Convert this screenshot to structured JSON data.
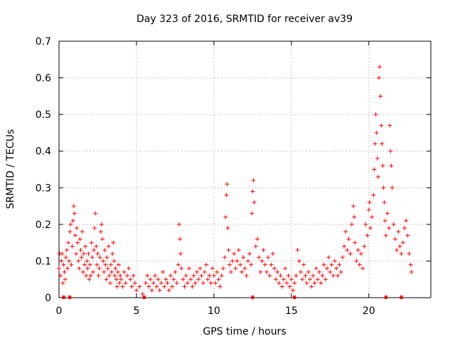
{
  "chart_data": {
    "type": "scatter",
    "title": "Day 323 of 2016, SRMTID for receiver av39",
    "xlabel": "GPS time / hours",
    "ylabel": "SRMTID / TECUs",
    "xlim": [
      0,
      24
    ],
    "ylim": [
      0,
      0.7
    ],
    "grid": true,
    "marker": "+",
    "color": "#ff0000",
    "x_ticks": [
      {
        "value": 0,
        "label": "0"
      },
      {
        "value": 5,
        "label": "5"
      },
      {
        "value": 10,
        "label": "10"
      },
      {
        "value": 15,
        "label": "15"
      },
      {
        "value": 20,
        "label": "20"
      }
    ],
    "y_ticks": [
      {
        "value": 0,
        "label": "0"
      },
      {
        "value": 0.1,
        "label": "0.1"
      },
      {
        "value": 0.2,
        "label": "0.2"
      },
      {
        "value": 0.3,
        "label": "0.3"
      },
      {
        "value": 0.4,
        "label": "0.4"
      },
      {
        "value": 0.5,
        "label": "0.5"
      },
      {
        "value": 0.6,
        "label": "0.6"
      },
      {
        "value": 0.7,
        "label": "0.7"
      }
    ],
    "series": [
      {
        "name": "SRMTID",
        "points": [
          [
            0.0,
            0.08
          ],
          [
            0.05,
            0.12
          ],
          [
            0.1,
            0.06
          ],
          [
            0.15,
            0.1
          ],
          [
            0.2,
            0.12
          ],
          [
            0.25,
            0.04
          ],
          [
            0.3,
            0.09
          ],
          [
            0.35,
            0.07
          ],
          [
            0.4,
            0.05
          ],
          [
            0.45,
            0.11
          ],
          [
            0.5,
            0.13
          ],
          [
            0.55,
            0.08
          ],
          [
            0.6,
            0.15
          ],
          [
            0.65,
            0.1
          ],
          [
            0.7,
            0.18
          ],
          [
            0.75,
            0.2
          ],
          [
            0.8,
            0.09
          ],
          [
            0.85,
            0.14
          ],
          [
            0.9,
            0.21
          ],
          [
            0.95,
            0.25
          ],
          [
            1.0,
            0.23
          ],
          [
            1.05,
            0.17
          ],
          [
            1.1,
            0.12
          ],
          [
            1.15,
            0.19
          ],
          [
            1.2,
            0.15
          ],
          [
            1.25,
            0.1
          ],
          [
            1.3,
            0.08
          ],
          [
            1.35,
            0.16
          ],
          [
            1.4,
            0.13
          ],
          [
            1.45,
            0.11
          ],
          [
            1.5,
            0.18
          ],
          [
            1.55,
            0.07
          ],
          [
            1.6,
            0.12
          ],
          [
            1.65,
            0.09
          ],
          [
            1.7,
            0.14
          ],
          [
            1.75,
            0.06
          ],
          [
            1.8,
            0.1
          ],
          [
            1.85,
            0.08
          ],
          [
            1.9,
            0.12
          ],
          [
            1.95,
            0.05
          ],
          [
            2.0,
            0.09
          ],
          [
            2.05,
            0.06
          ],
          [
            2.1,
            0.15
          ],
          [
            2.15,
            0.11
          ],
          [
            2.2,
            0.07
          ],
          [
            2.25,
            0.13
          ],
          [
            2.3,
            0.19
          ],
          [
            2.35,
            0.23
          ],
          [
            2.4,
            0.14
          ],
          [
            2.45,
            0.09
          ],
          [
            2.5,
            0.12
          ],
          [
            2.55,
            0.06
          ],
          [
            2.6,
            0.08
          ],
          [
            2.65,
            0.11
          ],
          [
            2.7,
            0.18
          ],
          [
            2.75,
            0.2
          ],
          [
            2.8,
            0.16
          ],
          [
            2.85,
            0.1
          ],
          [
            2.9,
            0.07
          ],
          [
            2.95,
            0.13
          ],
          [
            3.0,
            0.09
          ],
          [
            3.05,
            0.05
          ],
          [
            3.1,
            0.11
          ],
          [
            3.15,
            0.08
          ],
          [
            3.2,
            0.14
          ],
          [
            3.25,
            0.06
          ],
          [
            3.3,
            0.04
          ],
          [
            3.35,
            0.09
          ],
          [
            3.4,
            0.07
          ],
          [
            3.45,
            0.12
          ],
          [
            3.5,
            0.15
          ],
          [
            3.55,
            0.1
          ],
          [
            3.6,
            0.06
          ],
          [
            3.65,
            0.08
          ],
          [
            3.7,
            0.05
          ],
          [
            3.75,
            0.03
          ],
          [
            3.8,
            0.07
          ],
          [
            3.85,
            0.09
          ],
          [
            3.9,
            0.04
          ],
          [
            3.95,
            0.06
          ],
          [
            4.0,
            0.05
          ],
          [
            4.1,
            0.03
          ],
          [
            4.2,
            0.07
          ],
          [
            4.3,
            0.04
          ],
          [
            4.4,
            0.06
          ],
          [
            4.5,
            0.08
          ],
          [
            4.6,
            0.05
          ],
          [
            4.7,
            0.03
          ],
          [
            4.8,
            0.06
          ],
          [
            4.9,
            0.04
          ],
          [
            5.0,
            0.02
          ],
          [
            5.2,
            0.03
          ],
          [
            5.4,
            0.01
          ],
          [
            5.6,
            0.04
          ],
          [
            5.7,
            0.06
          ],
          [
            5.8,
            0.03
          ],
          [
            5.9,
            0.05
          ],
          [
            6.0,
            0.02
          ],
          [
            6.1,
            0.04
          ],
          [
            6.2,
            0.06
          ],
          [
            6.3,
            0.03
          ],
          [
            6.4,
            0.05
          ],
          [
            6.5,
            0.02
          ],
          [
            6.6,
            0.04
          ],
          [
            6.7,
            0.07
          ],
          [
            6.8,
            0.03
          ],
          [
            6.9,
            0.05
          ],
          [
            7.0,
            0.04
          ],
          [
            7.1,
            0.02
          ],
          [
            7.2,
            0.06
          ],
          [
            7.3,
            0.03
          ],
          [
            7.4,
            0.05
          ],
          [
            7.5,
            0.07
          ],
          [
            7.6,
            0.04
          ],
          [
            7.7,
            0.09
          ],
          [
            7.75,
            0.2
          ],
          [
            7.8,
            0.16
          ],
          [
            7.85,
            0.12
          ],
          [
            7.9,
            0.08
          ],
          [
            8.0,
            0.05
          ],
          [
            8.1,
            0.03
          ],
          [
            8.2,
            0.06
          ],
          [
            8.3,
            0.04
          ],
          [
            8.4,
            0.08
          ],
          [
            8.5,
            0.05
          ],
          [
            8.6,
            0.03
          ],
          [
            8.7,
            0.06
          ],
          [
            8.8,
            0.04
          ],
          [
            8.9,
            0.07
          ],
          [
            9.0,
            0.05
          ],
          [
            9.1,
            0.08
          ],
          [
            9.2,
            0.06
          ],
          [
            9.3,
            0.04
          ],
          [
            9.4,
            0.07
          ],
          [
            9.5,
            0.09
          ],
          [
            9.6,
            0.05
          ],
          [
            9.7,
            0.06
          ],
          [
            9.8,
            0.04
          ],
          [
            9.9,
            0.08
          ],
          [
            10.0,
            0.06
          ],
          [
            10.1,
            0.04
          ],
          [
            10.2,
            0.07
          ],
          [
            10.3,
            0.05
          ],
          [
            10.4,
            0.03
          ],
          [
            10.5,
            0.06
          ],
          [
            10.6,
            0.08
          ],
          [
            10.7,
            0.11
          ],
          [
            10.75,
            0.22
          ],
          [
            10.8,
            0.28
          ],
          [
            10.85,
            0.31
          ],
          [
            10.9,
            0.19
          ],
          [
            10.95,
            0.13
          ],
          [
            11.0,
            0.09
          ],
          [
            11.1,
            0.07
          ],
          [
            11.2,
            0.1
          ],
          [
            11.3,
            0.12
          ],
          [
            11.4,
            0.08
          ],
          [
            11.5,
            0.1
          ],
          [
            11.6,
            0.13
          ],
          [
            11.7,
            0.09
          ],
          [
            11.8,
            0.07
          ],
          [
            11.9,
            0.11
          ],
          [
            12.0,
            0.08
          ],
          [
            12.1,
            0.06
          ],
          [
            12.2,
            0.1
          ],
          [
            12.3,
            0.12
          ],
          [
            12.4,
            0.09
          ],
          [
            12.45,
            0.23
          ],
          [
            12.5,
            0.29
          ],
          [
            12.55,
            0.32
          ],
          [
            12.6,
            0.26
          ],
          [
            12.7,
            0.14
          ],
          [
            12.8,
            0.16
          ],
          [
            12.9,
            0.11
          ],
          [
            13.0,
            0.07
          ],
          [
            13.1,
            0.1
          ],
          [
            13.2,
            0.13
          ],
          [
            13.3,
            0.09
          ],
          [
            13.4,
            0.07
          ],
          [
            13.5,
            0.11
          ],
          [
            13.6,
            0.06
          ],
          [
            13.7,
            0.09
          ],
          [
            13.8,
            0.12
          ],
          [
            13.9,
            0.08
          ],
          [
            14.0,
            0.05
          ],
          [
            14.1,
            0.07
          ],
          [
            14.2,
            0.04
          ],
          [
            14.3,
            0.06
          ],
          [
            14.4,
            0.03
          ],
          [
            14.5,
            0.05
          ],
          [
            14.6,
            0.08
          ],
          [
            14.7,
            0.04
          ],
          [
            14.8,
            0.06
          ],
          [
            14.9,
            0.03
          ],
          [
            15.0,
            0.05
          ],
          [
            15.1,
            0.02
          ],
          [
            15.2,
            0.04
          ],
          [
            15.3,
            0.06
          ],
          [
            15.4,
            0.13
          ],
          [
            15.5,
            0.1
          ],
          [
            15.6,
            0.07
          ],
          [
            15.7,
            0.05
          ],
          [
            15.8,
            0.09
          ],
          [
            15.9,
            0.06
          ],
          [
            16.0,
            0.04
          ],
          [
            16.1,
            0.07
          ],
          [
            16.2,
            0.05
          ],
          [
            16.3,
            0.03
          ],
          [
            16.4,
            0.06
          ],
          [
            16.5,
            0.04
          ],
          [
            16.6,
            0.08
          ],
          [
            16.7,
            0.05
          ],
          [
            16.8,
            0.07
          ],
          [
            16.9,
            0.04
          ],
          [
            17.0,
            0.06
          ],
          [
            17.1,
            0.09
          ],
          [
            17.2,
            0.05
          ],
          [
            17.3,
            0.08
          ],
          [
            17.4,
            0.11
          ],
          [
            17.5,
            0.07
          ],
          [
            17.6,
            0.09
          ],
          [
            17.7,
            0.06
          ],
          [
            17.8,
            0.1
          ],
          [
            17.9,
            0.08
          ],
          [
            18.0,
            0.06
          ],
          [
            18.1,
            0.09
          ],
          [
            18.2,
            0.07
          ],
          [
            18.3,
            0.11
          ],
          [
            18.4,
            0.14
          ],
          [
            18.5,
            0.18
          ],
          [
            18.6,
            0.13
          ],
          [
            18.7,
            0.16
          ],
          [
            18.8,
            0.12
          ],
          [
            18.9,
            0.2
          ],
          [
            19.0,
            0.25
          ],
          [
            19.05,
            0.22
          ],
          [
            19.1,
            0.15
          ],
          [
            19.2,
            0.1
          ],
          [
            19.3,
            0.13
          ],
          [
            19.4,
            0.09
          ],
          [
            19.5,
            0.12
          ],
          [
            19.6,
            0.08
          ],
          [
            19.7,
            0.14
          ],
          [
            19.8,
            0.2
          ],
          [
            19.9,
            0.17
          ],
          [
            20.0,
            0.24
          ],
          [
            20.05,
            0.26
          ],
          [
            20.1,
            0.19
          ],
          [
            20.2,
            0.22
          ],
          [
            20.3,
            0.28
          ],
          [
            20.35,
            0.35
          ],
          [
            20.4,
            0.42
          ],
          [
            20.45,
            0.5
          ],
          [
            20.5,
            0.45
          ],
          [
            20.55,
            0.38
          ],
          [
            20.6,
            0.33
          ],
          [
            20.65,
            0.6
          ],
          [
            20.7,
            0.63
          ],
          [
            20.75,
            0.55
          ],
          [
            20.8,
            0.47
          ],
          [
            20.85,
            0.42
          ],
          [
            20.9,
            0.36
          ],
          [
            20.95,
            0.3
          ],
          [
            21.0,
            0.26
          ],
          [
            21.05,
            0.21
          ],
          [
            21.1,
            0.17
          ],
          [
            21.2,
            0.23
          ],
          [
            21.3,
            0.19
          ],
          [
            21.35,
            0.47
          ],
          [
            21.4,
            0.4
          ],
          [
            21.45,
            0.36
          ],
          [
            21.5,
            0.3
          ],
          [
            21.6,
            0.2
          ],
          [
            21.7,
            0.16
          ],
          [
            21.8,
            0.13
          ],
          [
            21.9,
            0.18
          ],
          [
            22.0,
            0.14
          ],
          [
            22.1,
            0.12
          ],
          [
            22.2,
            0.15
          ],
          [
            22.3,
            0.19
          ],
          [
            22.4,
            0.21
          ],
          [
            22.5,
            0.17
          ],
          [
            22.6,
            0.12
          ],
          [
            22.7,
            0.09
          ],
          [
            22.75,
            0.07
          ]
        ]
      }
    ],
    "baseline_markers_x": [
      0.3,
      0.7,
      5.5,
      12.5,
      15.2,
      21.1,
      22.1
    ]
  }
}
